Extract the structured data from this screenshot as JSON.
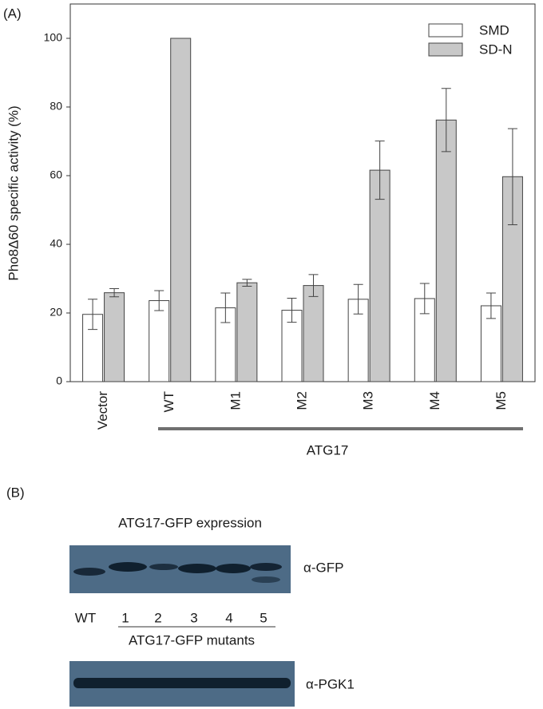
{
  "chart_data": {
    "type": "bar",
    "panel_label": "(A)",
    "y_label": "Pho8Δ60 specific activity (%)",
    "categories": [
      "Vector",
      "WT",
      "M1",
      "M2",
      "M3",
      "M4",
      "M5"
    ],
    "group_label": "ATG17",
    "series": [
      {
        "name": "SMD",
        "color": "#ffffff",
        "values": [
          19.6,
          23.6,
          21.5,
          20.8,
          24,
          24.2,
          22.1
        ],
        "errors": [
          4.4,
          2.9,
          4.3,
          3.5,
          4.3,
          4.4,
          3.7
        ]
      },
      {
        "name": "SD-N",
        "color": "#c8c8c8",
        "values": [
          25.9,
          100,
          28.8,
          28,
          61.6,
          76.2,
          59.7
        ],
        "errors": [
          1.2,
          null,
          1,
          3.2,
          8.5,
          9.2,
          14
        ]
      }
    ],
    "ylim": [
      0,
      110
    ],
    "yticks": [
      0,
      20,
      40,
      60,
      80,
      100
    ],
    "legend": "top-right"
  },
  "panel_b": {
    "label": "(B)",
    "title": "ATG17-GFP expression",
    "gfp_label": "α-GFP",
    "lanes": [
      "WT",
      "1",
      "2",
      "3",
      "4",
      "5"
    ],
    "mutants_label": "ATG17-GFP mutants",
    "pgk1_label": "α-PGK1"
  }
}
